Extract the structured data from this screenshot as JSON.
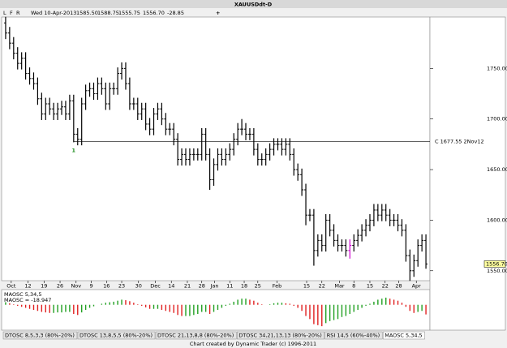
{
  "toolbar": {
    "buttons": [
      "L",
      "F",
      "R"
    ],
    "date": "Wed 10-Apr-2013",
    "fields": [
      "1585.50",
      "1588.75",
      "1555.75",
      "1556.70",
      "-28.85"
    ],
    "add": "+"
  },
  "chart_data": [
    {
      "type": "ohlc",
      "title": "XAUUSDdt-D",
      "color": "#000000",
      "highlight_index": 86,
      "highlight_color": "#d000d0",
      "xlim": [
        -1,
        106
      ],
      "ylim": [
        1541,
        1800
      ],
      "yticks": [
        {
          "value": 1750,
          "label": "1750.00"
        },
        {
          "value": 1700,
          "label": "1700.00"
        },
        {
          "value": 1650,
          "label": "1650.00"
        },
        {
          "value": 1600,
          "label": "1600.00"
        },
        {
          "value": 1550,
          "label": "1550.00"
        }
      ],
      "last_price": {
        "value": 1556.7,
        "label": "1556.70"
      },
      "reference_line": {
        "value": 1677.55,
        "label": "C 1677.55 2Nov12"
      },
      "marker": {
        "index": 17,
        "label": "1",
        "color": "#1a8a1a"
      },
      "xticks": [
        {
          "value": 1.4,
          "label": "Oct"
        },
        {
          "value": 5.6,
          "label": "12"
        },
        {
          "value": 9.6,
          "label": "19"
        },
        {
          "value": 13.6,
          "label": "26"
        },
        {
          "value": 17.6,
          "label": "Nov"
        },
        {
          "value": 21.4,
          "label": "9"
        },
        {
          "value": 25.2,
          "label": "16"
        },
        {
          "value": 29,
          "label": "23"
        },
        {
          "value": 33.2,
          "label": "30"
        },
        {
          "value": 37.4,
          "label": "Dec"
        },
        {
          "value": 41.4,
          "label": "14"
        },
        {
          "value": 45.4,
          "label": "21"
        },
        {
          "value": 49,
          "label": "28"
        },
        {
          "value": 52.2,
          "label": "Jan"
        },
        {
          "value": 56,
          "label": "11"
        },
        {
          "value": 59.6,
          "label": "18"
        },
        {
          "value": 63,
          "label": "25"
        },
        {
          "value": 67.8,
          "label": "Feb"
        },
        {
          "value": 75.2,
          "label": "15"
        },
        {
          "value": 79,
          "label": "22"
        },
        {
          "value": 83.4,
          "label": "Mar"
        },
        {
          "value": 87,
          "label": "8"
        },
        {
          "value": 91,
          "label": "15"
        },
        {
          "value": 94.8,
          "label": "22"
        },
        {
          "value": 98.2,
          "label": "28"
        },
        {
          "value": 102.6,
          "label": "Apr"
        }
      ],
      "open": [
        1795,
        1785,
        1775,
        1765,
        1755,
        1760,
        1745,
        1740,
        1735,
        1720,
        1705,
        1715,
        1710,
        1705,
        1710,
        1712,
        1705,
        1718,
        1685,
        1680,
        1715,
        1728,
        1730,
        1725,
        1735,
        1730,
        1715,
        1730,
        1730,
        1745,
        1750,
        1735,
        1715,
        1715,
        1705,
        1710,
        1695,
        1690,
        1705,
        1710,
        1700,
        1690,
        1690,
        1680,
        1660,
        1665,
        1660,
        1665,
        1665,
        1665,
        1685,
        1665,
        1640,
        1655,
        1665,
        1660,
        1665,
        1670,
        1680,
        1690,
        1690,
        1685,
        1685,
        1670,
        1660,
        1660,
        1665,
        1670,
        1675,
        1675,
        1670,
        1675,
        1665,
        1650,
        1645,
        1630,
        1605,
        1605,
        1570,
        1580,
        1575,
        1600,
        1590,
        1580,
        1575,
        1575,
        1570,
        1575,
        1580,
        1585,
        1590,
        1595,
        1600,
        1610,
        1605,
        1610,
        1605,
        1600,
        1600,
        1595,
        1590,
        1565,
        1550,
        1560,
        1575,
        1580
      ],
      "high": [
        1801,
        1791,
        1781,
        1771,
        1766,
        1766,
        1751,
        1746,
        1741,
        1726,
        1721,
        1721,
        1716,
        1716,
        1718,
        1718,
        1724,
        1724,
        1691,
        1721,
        1734,
        1736,
        1736,
        1741,
        1741,
        1736,
        1736,
        1736,
        1751,
        1756,
        1756,
        1741,
        1721,
        1721,
        1716,
        1716,
        1701,
        1711,
        1716,
        1716,
        1706,
        1696,
        1696,
        1686,
        1671,
        1671,
        1671,
        1671,
        1671,
        1691,
        1691,
        1671,
        1661,
        1671,
        1671,
        1671,
        1676,
        1686,
        1696,
        1700,
        1696,
        1691,
        1691,
        1676,
        1666,
        1671,
        1676,
        1681,
        1681,
        1681,
        1681,
        1681,
        1671,
        1656,
        1651,
        1636,
        1611,
        1611,
        1586,
        1586,
        1606,
        1606,
        1596,
        1586,
        1581,
        1581,
        1581,
        1586,
        1591,
        1596,
        1601,
        1606,
        1616,
        1616,
        1616,
        1616,
        1611,
        1606,
        1606,
        1601,
        1596,
        1571,
        1566,
        1581,
        1586,
        1586
      ],
      "low": [
        1779,
        1769,
        1759,
        1749,
        1749,
        1739,
        1734,
        1729,
        1714,
        1699,
        1699,
        1704,
        1699,
        1699,
        1704,
        1699,
        1699,
        1677,
        1674,
        1674,
        1709,
        1722,
        1719,
        1719,
        1724,
        1709,
        1709,
        1724,
        1724,
        1739,
        1729,
        1709,
        1709,
        1699,
        1699,
        1689,
        1684,
        1684,
        1699,
        1694,
        1684,
        1684,
        1674,
        1654,
        1654,
        1654,
        1654,
        1659,
        1659,
        1659,
        1659,
        1630,
        1634,
        1649,
        1654,
        1654,
        1659,
        1664,
        1674,
        1684,
        1679,
        1679,
        1664,
        1654,
        1654,
        1654,
        1659,
        1664,
        1669,
        1664,
        1664,
        1659,
        1644,
        1639,
        1624,
        1595,
        1599,
        1555,
        1564,
        1569,
        1569,
        1584,
        1574,
        1569,
        1569,
        1564,
        1562,
        1569,
        1574,
        1579,
        1584,
        1589,
        1594,
        1599,
        1599,
        1599,
        1594,
        1594,
        1589,
        1584,
        1559,
        1540,
        1544,
        1554,
        1569,
        1552
      ],
      "close": [
        1785,
        1775,
        1765,
        1755,
        1760,
        1745,
        1740,
        1735,
        1720,
        1705,
        1715,
        1710,
        1705,
        1710,
        1712,
        1705,
        1718,
        1685,
        1680,
        1715,
        1728,
        1730,
        1725,
        1735,
        1730,
        1715,
        1730,
        1730,
        1745,
        1750,
        1735,
        1715,
        1715,
        1705,
        1710,
        1695,
        1690,
        1705,
        1710,
        1700,
        1690,
        1690,
        1680,
        1660,
        1665,
        1660,
        1665,
        1665,
        1665,
        1685,
        1665,
        1640,
        1655,
        1665,
        1660,
        1665,
        1670,
        1680,
        1690,
        1690,
        1685,
        1685,
        1670,
        1660,
        1660,
        1665,
        1670,
        1675,
        1675,
        1670,
        1675,
        1665,
        1650,
        1645,
        1630,
        1605,
        1605,
        1570,
        1580,
        1575,
        1600,
        1590,
        1580,
        1575,
        1575,
        1570,
        1575,
        1580,
        1585,
        1590,
        1595,
        1600,
        1610,
        1605,
        1610,
        1605,
        1600,
        1600,
        1595,
        1590,
        1565,
        1550,
        1560,
        1575,
        1580,
        1556.7
      ]
    },
    {
      "type": "bar",
      "title": "MAOSC 5,34,5",
      "readout": "MAOSC = -18.947",
      "up_color": "#22a022",
      "down_color": "#e02020",
      "xlim": [
        -1,
        106
      ],
      "ylim": [
        -45,
        25
      ],
      "values": [
        5,
        3,
        1,
        -2,
        -4,
        -6,
        -8,
        -10,
        -12,
        -14,
        -15,
        -16,
        -16,
        -15,
        -15,
        -14,
        -14,
        -18,
        -20,
        -15,
        -10,
        -6,
        -3,
        0,
        2,
        4,
        5,
        6,
        8,
        10,
        9,
        7,
        4,
        1,
        -2,
        -5,
        -8,
        -8,
        -8,
        -10,
        -12,
        -14,
        -16,
        -20,
        -22,
        -22,
        -22,
        -20,
        -18,
        -14,
        -14,
        -18,
        -14,
        -10,
        -6,
        -2,
        2,
        6,
        10,
        12,
        12,
        10,
        8,
        4,
        1,
        0,
        1,
        3,
        4,
        4,
        3,
        2,
        -2,
        -6,
        -12,
        -22,
        -28,
        -38,
        -40,
        -42,
        -36,
        -32,
        -30,
        -28,
        -24,
        -22,
        -18,
        -14,
        -10,
        -6,
        -2,
        2,
        6,
        10,
        12,
        14,
        12,
        10,
        8,
        4,
        -4,
        -12,
        -16,
        -14,
        -12,
        -18.947
      ]
    }
  ],
  "tabs": [
    "DTOSC 8,5,3,3 (80%-20%)",
    "DTOSC 13,8,5,5 (80%-20%)",
    "DTOSC 21,13,8,8 (80%-20%)",
    "DTOSC 34,21,13,13 (80%-20%)",
    "RSI 14,5 (60%-40%)",
    "MAOSC 5,34,5"
  ],
  "footer": "Chart created by Dynamic Trader  (c) 1996-2011"
}
